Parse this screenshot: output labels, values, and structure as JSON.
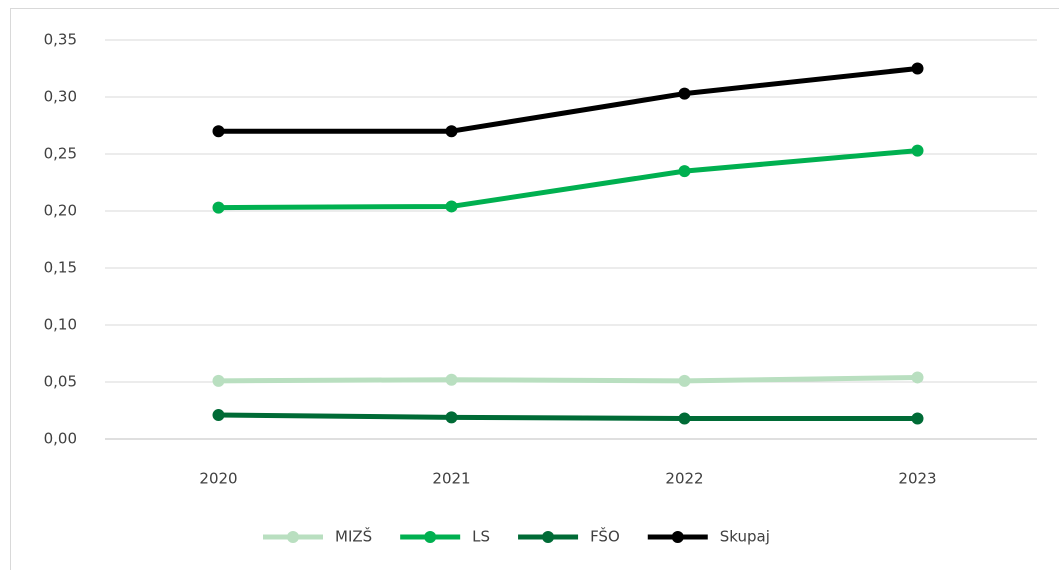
{
  "chart_data": {
    "type": "line",
    "categories": [
      "2020",
      "2021",
      "2022",
      "2023"
    ],
    "series": [
      {
        "name": "MIZŠ",
        "color": "#b9dfc0",
        "values": [
          0.051,
          0.052,
          0.051,
          0.054
        ]
      },
      {
        "name": "LS",
        "color": "#00b050",
        "values": [
          0.203,
          0.204,
          0.235,
          0.253
        ]
      },
      {
        "name": "FŠO",
        "color": "#006b36",
        "values": [
          0.021,
          0.019,
          0.018,
          0.018
        ]
      },
      {
        "name": "Skupaj",
        "color": "#000000",
        "values": [
          0.27,
          0.27,
          0.303,
          0.325
        ]
      }
    ],
    "ylim": [
      0,
      0.35
    ],
    "yticks": [
      {
        "value": 0,
        "label": "0,00"
      },
      {
        "value": 0.05,
        "label": "0,05"
      },
      {
        "value": 0.1,
        "label": "0,10"
      },
      {
        "value": 0.15,
        "label": "0,15"
      },
      {
        "value": 0.2,
        "label": "0,20"
      },
      {
        "value": 0.25,
        "label": "0,25"
      },
      {
        "value": 0.3,
        "label": "0,30"
      },
      {
        "value": 0.35,
        "label": "0,35"
      }
    ],
    "grid": true,
    "legend": "bottom"
  }
}
